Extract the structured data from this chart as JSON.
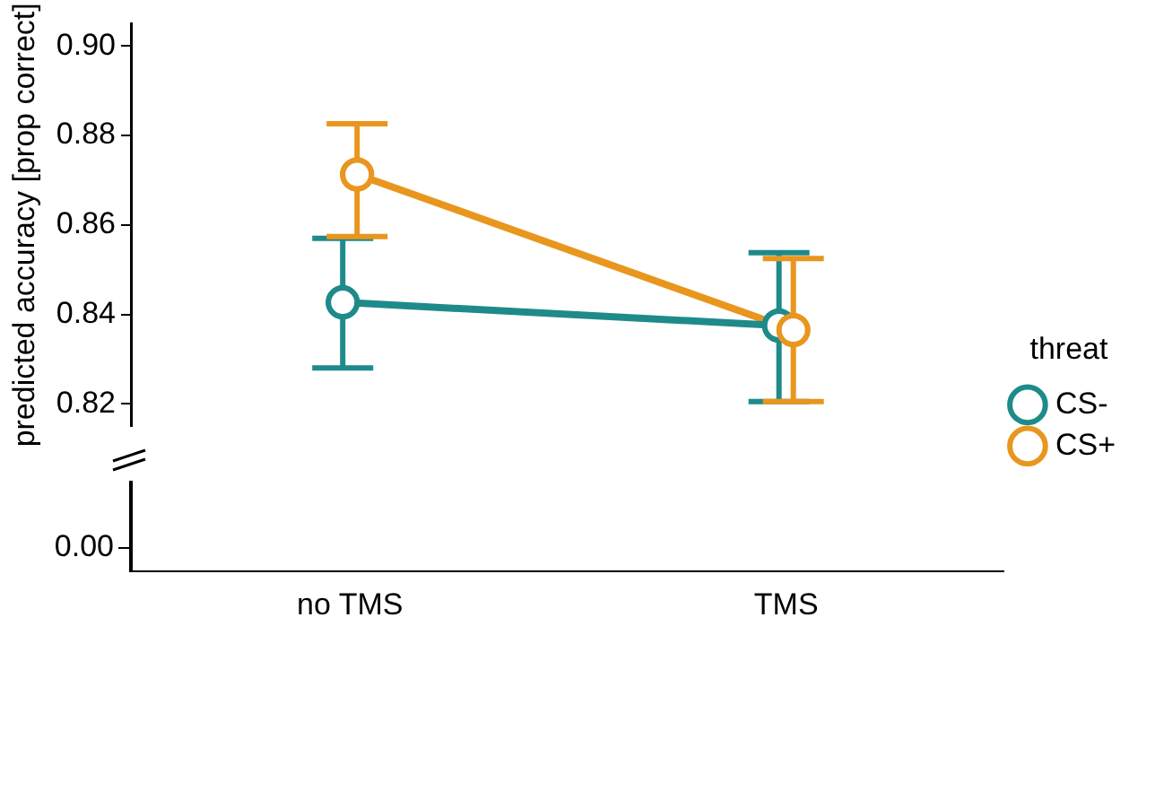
{
  "chart_data": {
    "type": "line",
    "ylabel": "predicted accuracy [prop correct]",
    "legend_title": "threat",
    "legend": "right",
    "marker": "circle",
    "grid": false,
    "categories": [
      "no TMS",
      "TMS"
    ],
    "ylim": [
      0.815,
      0.905
    ],
    "yticks": [
      {
        "value": 0.82,
        "label": "0.82"
      },
      {
        "value": 0.84,
        "label": "0.84"
      },
      {
        "value": 0.86,
        "label": "0.86"
      },
      {
        "value": 0.88,
        "label": "0.88"
      },
      {
        "value": 0.9,
        "label": "0.90"
      }
    ],
    "annotations": [
      "0.00"
    ],
    "series": [
      {
        "name": "CS-",
        "color": "#1f8a8a",
        "values": [
          0.8427,
          0.8375
        ],
        "errors": [
          [
            0.828,
            0.857
          ],
          [
            0.8205,
            0.8538
          ]
        ]
      },
      {
        "name": "CS+",
        "color": "#e8961e",
        "values": [
          0.8713,
          0.8365
        ],
        "errors": [
          [
            0.8574,
            0.8826
          ],
          [
            0.8205,
            0.8525
          ]
        ]
      }
    ]
  }
}
